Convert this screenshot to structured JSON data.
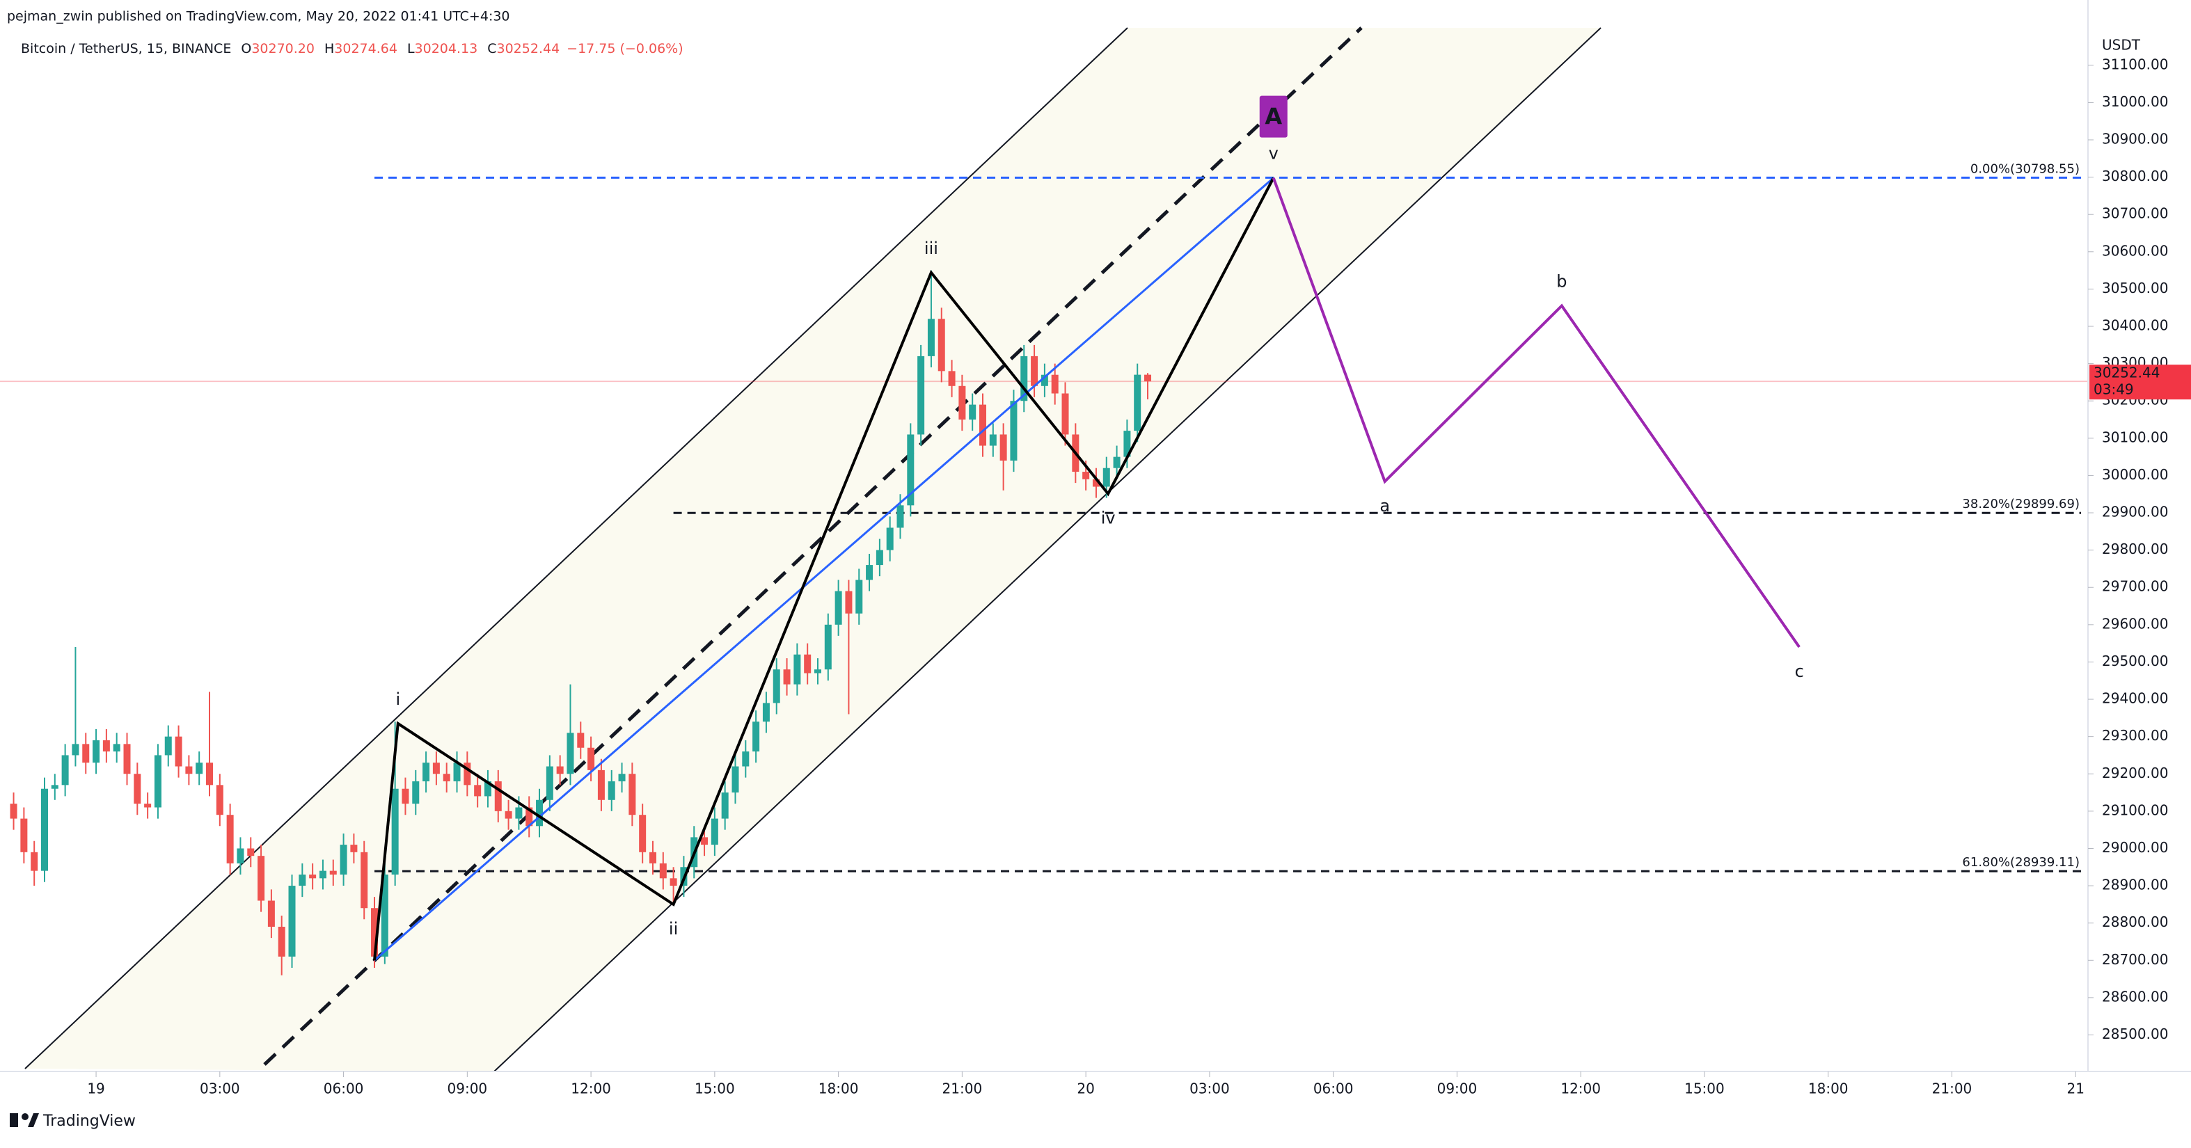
{
  "header": {
    "published": "pejman_zwin published on TradingView.com, May 20, 2022 01:41 UTC+4:30",
    "symbol": "Bitcoin / TetherUS, 15, BINANCE",
    "ohlc": [
      {
        "label": "O",
        "value": "30270.20"
      },
      {
        "label": "H",
        "value": "30274.64"
      },
      {
        "label": "L",
        "value": "30204.13"
      },
      {
        "label": "C",
        "value": "30252.44"
      }
    ],
    "change": "−17.75 (−0.06%)",
    "currency": "USDT",
    "brand": "TradingView"
  },
  "chart_data": {
    "type": "candlestick",
    "xlim": [
      -2.33,
      48.3
    ],
    "ylim": [
      28402,
      31275
    ],
    "xticks": [
      {
        "value": 0,
        "label": "19"
      },
      {
        "value": 3,
        "label": "03:00"
      },
      {
        "value": 6,
        "label": "06:00"
      },
      {
        "value": 9,
        "label": "09:00"
      },
      {
        "value": 12,
        "label": "12:00"
      },
      {
        "value": 15,
        "label": "15:00"
      },
      {
        "value": 18,
        "label": "18:00"
      },
      {
        "value": 21,
        "label": "21:00"
      },
      {
        "value": 24,
        "label": "20"
      },
      {
        "value": 27,
        "label": "03:00"
      },
      {
        "value": 30,
        "label": "06:00"
      },
      {
        "value": 33,
        "label": "09:00"
      },
      {
        "value": 36,
        "label": "12:00"
      },
      {
        "value": 39,
        "label": "15:00"
      },
      {
        "value": 42,
        "label": "18:00"
      },
      {
        "value": 45,
        "label": "21:00"
      },
      {
        "value": 48,
        "label": "21"
      }
    ],
    "yticks": [
      {
        "value": 28500,
        "label": "28500.00"
      },
      {
        "value": 28600,
        "label": "28600.00"
      },
      {
        "value": 28700,
        "label": "28700.00"
      },
      {
        "value": 28800,
        "label": "28800.00"
      },
      {
        "value": 28900,
        "label": "28900.00"
      },
      {
        "value": 29000,
        "label": "29000.00"
      },
      {
        "value": 29100,
        "label": "29100.00"
      },
      {
        "value": 29200,
        "label": "29200.00"
      },
      {
        "value": 29300,
        "label": "29300.00"
      },
      {
        "value": 29400,
        "label": "29400.00"
      },
      {
        "value": 29500,
        "label": "29500.00"
      },
      {
        "value": 29600,
        "label": "29600.00"
      },
      {
        "value": 29700,
        "label": "29700.00"
      },
      {
        "value": 29800,
        "label": "29800.00"
      },
      {
        "value": 29900,
        "label": "29900.00"
      },
      {
        "value": 30000,
        "label": "30000.00"
      },
      {
        "value": 30100,
        "label": "30100.00"
      },
      {
        "value": 30200,
        "label": "30200.00"
      },
      {
        "value": 30300,
        "label": "30300.00"
      },
      {
        "value": 30400,
        "label": "30400.00"
      },
      {
        "value": 30500,
        "label": "30500.00"
      },
      {
        "value": 30600,
        "label": "30600.00"
      },
      {
        "value": 30700,
        "label": "30700.00"
      },
      {
        "value": 30800,
        "label": "30800.00"
      },
      {
        "value": 30900,
        "label": "30900.00"
      },
      {
        "value": 31000,
        "label": "31000.00"
      },
      {
        "value": 31100,
        "label": "31100.00"
      }
    ],
    "up_color": "#26a69a",
    "down_color": "#ef5350",
    "x": [
      -2.0,
      -1.75,
      -1.5,
      -1.25,
      -1.0,
      -0.75,
      -0.5,
      -0.25,
      0.0,
      0.25,
      0.5,
      0.75,
      1.0,
      1.25,
      1.5,
      1.75,
      2.0,
      2.25,
      2.5,
      2.75,
      3.0,
      3.25,
      3.5,
      3.75,
      4.0,
      4.25,
      4.5,
      4.75,
      5.0,
      5.25,
      5.5,
      5.75,
      6.0,
      6.25,
      6.5,
      6.75,
      7.0,
      7.25,
      7.5,
      7.75,
      8.0,
      8.25,
      8.5,
      8.75,
      9.0,
      9.25,
      9.5,
      9.75,
      10.0,
      10.25,
      10.5,
      10.75,
      11.0,
      11.25,
      11.5,
      11.75,
      12.0,
      12.25,
      12.5,
      12.75,
      13.0,
      13.25,
      13.5,
      13.75,
      14.0,
      14.25,
      14.5,
      14.75,
      15.0,
      15.25,
      15.5,
      15.75,
      16.0,
      16.25,
      16.5,
      16.75,
      17.0,
      17.25,
      17.5,
      17.75,
      18.0,
      18.25,
      18.5,
      18.75,
      19.0,
      19.25,
      19.5,
      19.75,
      20.0,
      20.25,
      20.5,
      20.75,
      21.0,
      21.25,
      21.5,
      21.75,
      22.0,
      22.25,
      22.5,
      22.75,
      23.0,
      23.25,
      23.5,
      23.75,
      24.0,
      24.25,
      24.5,
      24.75,
      25.0,
      25.25,
      25.5
    ],
    "open": [
      29120,
      29080,
      28990,
      28940,
      29160,
      29170,
      29250,
      29280,
      29230,
      29290,
      29260,
      29280,
      29200,
      29120,
      29110,
      29250,
      29300,
      29220,
      29200,
      29230,
      29170,
      29090,
      28960,
      29000,
      28980,
      28860,
      28790,
      28710,
      28900,
      28930,
      28920,
      28940,
      28930,
      29010,
      28990,
      28840,
      28710,
      28930,
      29160,
      29120,
      29180,
      29230,
      29200,
      29180,
      29230,
      29170,
      29140,
      29180,
      29100,
      29080,
      29110,
      29060,
      29130,
      29220,
      29200,
      29310,
      29270,
      29210,
      29130,
      29180,
      29200,
      29090,
      28990,
      28960,
      28920,
      28900,
      28950,
      29030,
      29010,
      29080,
      29150,
      29220,
      29260,
      29340,
      29390,
      29480,
      29440,
      29520,
      29470,
      29480,
      29600,
      29690,
      29630,
      29720,
      29760,
      29800,
      29860,
      29920,
      30110,
      30320,
      30420,
      30280,
      30240,
      30150,
      30190,
      30080,
      30110,
      30040,
      30200,
      30320,
      30240,
      30270,
      30220,
      30110,
      30010,
      29990,
      29970,
      30020,
      30050,
      30120,
      30270.2
    ],
    "high": [
      29150,
      29110,
      29020,
      29190,
      29200,
      29280,
      29540,
      29310,
      29320,
      29320,
      29310,
      29310,
      29230,
      29150,
      29280,
      29330,
      29330,
      29250,
      29260,
      29420,
      29200,
      29120,
      29030,
      29030,
      29010,
      28890,
      28820,
      28930,
      28960,
      28960,
      28970,
      28970,
      29040,
      29040,
      29020,
      28870,
      28960,
      29340,
      29190,
      29210,
      29260,
      29260,
      29230,
      29260,
      29260,
      29200,
      29210,
      29210,
      29130,
      29140,
      29140,
      29160,
      29250,
      29250,
      29440,
      29340,
      29300,
      29240,
      29210,
      29230,
      29230,
      29120,
      29020,
      28990,
      28950,
      28980,
      29060,
      29060,
      29110,
      29180,
      29250,
      29290,
      29370,
      29420,
      29510,
      29510,
      29550,
      29550,
      29510,
      29630,
      29720,
      29720,
      29750,
      29790,
      29830,
      29890,
      29950,
      30140,
      30350,
      30550,
      30450,
      30310,
      30270,
      30220,
      30220,
      30140,
      30140,
      30230,
      30350,
      30350,
      30300,
      30300,
      30250,
      30140,
      30040,
      30020,
      30050,
      30080,
      30150,
      30300,
      30274.64
    ],
    "low": [
      29050,
      28960,
      28900,
      28910,
      29130,
      29140,
      29220,
      29200,
      29200,
      29230,
      29230,
      29170,
      29090,
      29080,
      29080,
      29220,
      29190,
      29170,
      29170,
      29140,
      29060,
      28930,
      28930,
      28950,
      28830,
      28760,
      28660,
      28680,
      28870,
      28890,
      28890,
      28900,
      28900,
      28960,
      28810,
      28680,
      28690,
      28900,
      29090,
      29090,
      29150,
      29170,
      29150,
      29150,
      29140,
      29110,
      29110,
      29070,
      29050,
      29050,
      29030,
      29030,
      29100,
      29170,
      29170,
      29240,
      29180,
      29100,
      29100,
      29150,
      29060,
      28960,
      28930,
      28890,
      28850,
      28870,
      28920,
      28980,
      28980,
      29050,
      29120,
      29190,
      29230,
      29310,
      29360,
      29410,
      29410,
      29440,
      29440,
      29450,
      29570,
      29360,
      29600,
      29690,
      29730,
      29770,
      29830,
      29890,
      30080,
      30290,
      30250,
      30210,
      30120,
      30120,
      30050,
      30050,
      29960,
      30010,
      30170,
      30210,
      30210,
      30190,
      30080,
      29980,
      29960,
      29940,
      29940,
      29990,
      30020,
      30090,
      30204.13
    ],
    "close": [
      29080,
      28990,
      28940,
      29160,
      29170,
      29250,
      29280,
      29230,
      29290,
      29260,
      29280,
      29200,
      29120,
      29110,
      29250,
      29300,
      29220,
      29200,
      29230,
      29170,
      29090,
      28960,
      29000,
      28980,
      28860,
      28790,
      28710,
      28900,
      28930,
      28920,
      28940,
      28930,
      29010,
      28990,
      28840,
      28710,
      28930,
      29160,
      29120,
      29180,
      29230,
      29200,
      29180,
      29230,
      29170,
      29140,
      29180,
      29100,
      29080,
      29110,
      29060,
      29130,
      29220,
      29200,
      29310,
      29270,
      29210,
      29130,
      29180,
      29200,
      29090,
      28990,
      28960,
      28920,
      28900,
      28950,
      29030,
      29010,
      29080,
      29150,
      29220,
      29260,
      29340,
      29390,
      29480,
      29440,
      29520,
      29470,
      29480,
      29600,
      29690,
      29630,
      29720,
      29760,
      29800,
      29860,
      29920,
      30110,
      30320,
      30420,
      30280,
      30240,
      30150,
      30190,
      30080,
      30110,
      30040,
      30200,
      30320,
      30240,
      30270,
      30220,
      30110,
      30010,
      29990,
      29970,
      30020,
      30050,
      30120,
      30270.2,
      30252.44
    ],
    "last_price": {
      "value": 30252.44,
      "countdown": "03:49",
      "color": "#f23645"
    },
    "fib_levels": [
      {
        "value": 30798.55,
        "label": "0.00%(30798.55)",
        "from": 6.75,
        "color": "#2962ff"
      },
      {
        "value": 29899.69,
        "label": "38.20%(29899.69)",
        "from": 14.0,
        "color": "#131722"
      },
      {
        "value": 28939.11,
        "label": "61.80%(28939.11)",
        "from": 6.75,
        "color": "#131722"
      }
    ],
    "impulse": {
      "color": "#000000",
      "x": [
        6.75,
        7.32,
        14.0,
        20.25,
        24.54,
        28.55
      ],
      "y": [
        28700,
        29335,
        28850,
        30544,
        29951,
        30798
      ],
      "labels": [
        null,
        "i",
        "ii",
        "iii",
        "iv",
        "v"
      ]
    },
    "correction": {
      "color": "#9c27b0",
      "x": [
        28.55,
        31.25,
        35.54,
        41.3
      ],
      "y": [
        30798,
        29984,
        30455,
        29540
      ],
      "labels": [
        null,
        "a",
        "b",
        "c"
      ]
    },
    "trend_line_color": "#2962ff",
    "wave_label": "A"
  }
}
